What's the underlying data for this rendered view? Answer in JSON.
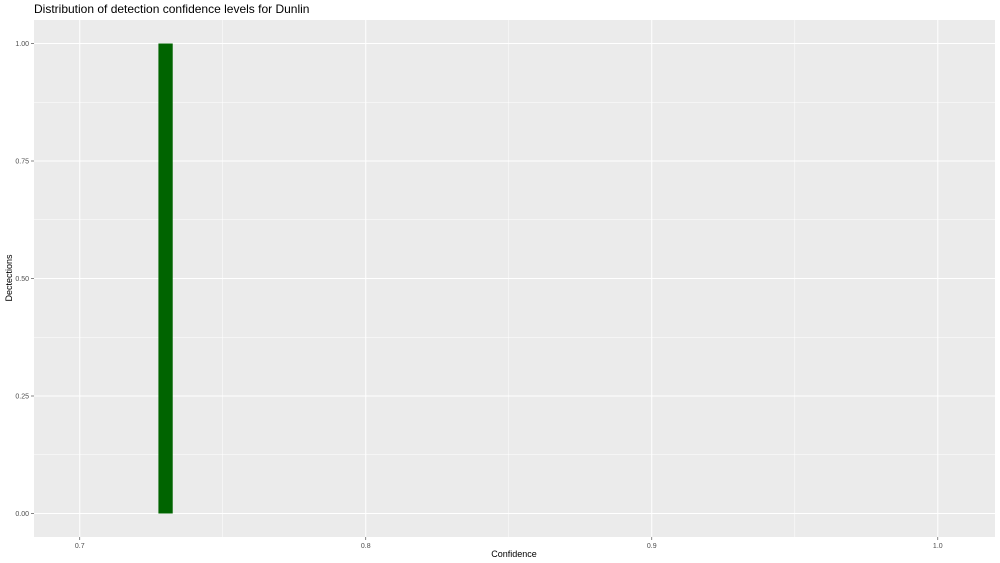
{
  "chart_data": {
    "type": "bar",
    "title": "Distribution of detection confidence levels for Dunlin",
    "xlabel": "Confidence",
    "ylabel": "Dectections",
    "x_ticks": [
      "0.7",
      "0.8",
      "0.9",
      "1.0"
    ],
    "y_ticks": [
      "0.00",
      "0.25",
      "0.50",
      "0.75",
      "1.00"
    ],
    "xlim": [
      0.684,
      1.02
    ],
    "ylim": [
      -0.05,
      1.05
    ],
    "bars": [
      {
        "x": 0.73,
        "width": 0.005,
        "value": 1
      }
    ],
    "bar_color": "#006400",
    "panel_color": "#ebebeb",
    "grid": true,
    "legend": "none"
  }
}
